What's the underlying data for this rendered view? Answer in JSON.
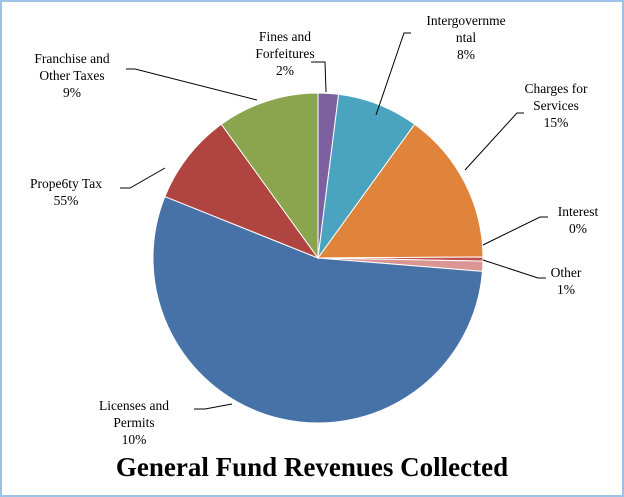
{
  "chart_data": {
    "type": "pie",
    "title": "General Fund Revenues Collected",
    "categories": [
      "Fines and\nForfeitures",
      "Intergovernme\nntal",
      "Charges for\nServices",
      "Interest",
      "Other",
      "Prope6ty Tax",
      "Franchise and\nOther Taxes",
      "Licenses and\nPermits"
    ],
    "values": [
      2,
      8,
      15,
      0.4,
      1,
      55,
      9,
      10
    ],
    "value_labels": [
      "2%",
      "8%",
      "15%",
      "0%",
      "1%",
      "55%",
      "9%",
      "10%"
    ],
    "colors": [
      "#7d60a0",
      "#4aa3bf",
      "#e0843c",
      "#c0504d",
      "#d99694",
      "#4672a8",
      "#b04440",
      "#8aa54e"
    ]
  }
}
